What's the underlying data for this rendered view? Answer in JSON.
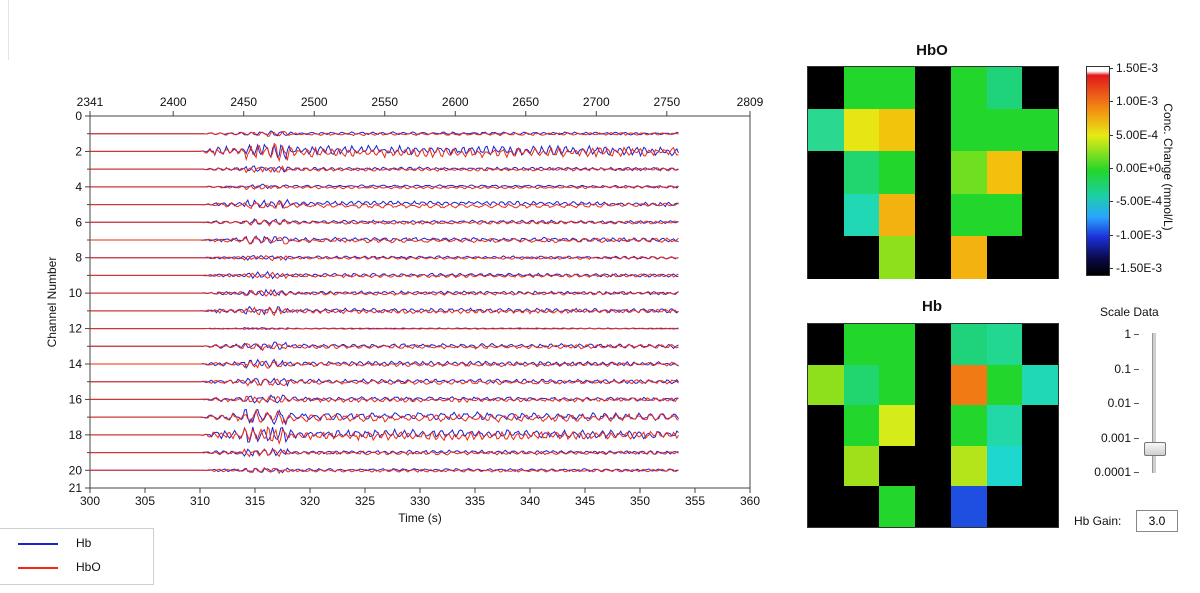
{
  "plot": {
    "top_ticks": [
      "2341",
      "2400",
      "2450",
      "2500",
      "2550",
      "2600",
      "2650",
      "2700",
      "2750",
      "2809"
    ],
    "bottom_ticks": [
      "300",
      "305",
      "310",
      "315",
      "320",
      "325",
      "330",
      "335",
      "340",
      "345",
      "350",
      "355",
      "360"
    ],
    "y_ticks": [
      "0",
      "2",
      "4",
      "6",
      "8",
      "10",
      "12",
      "14",
      "16",
      "18",
      "20",
      "21"
    ],
    "xlabel": "Time (s)",
    "ylabel": "Channel Number",
    "colors": {
      "hb": "#1a22d6",
      "hbo": "#ee2a12"
    }
  },
  "chart_data": {
    "type": "line",
    "xlabel": "Time (s)",
    "ylabel": "Channel Number",
    "xlim": [
      300,
      360
    ],
    "ylim": [
      21,
      0
    ],
    "x_secondary": {
      "min": 2341,
      "max": 2809
    },
    "series": [
      {
        "name": "Hb",
        "color": "#1a22d6"
      },
      {
        "name": "HbO",
        "color": "#ee2a12"
      }
    ],
    "signal_start_s": 310,
    "signal_end_s": 353.5
  },
  "heatmaps": {
    "hbo": {
      "title": "HbO",
      "grid": [
        [
          "#000000",
          "#22d62c",
          "#22d62c",
          "#000000",
          "#22d62c",
          "#1fd37a",
          "#000000"
        ],
        [
          "#2ad88f",
          "#e8e514",
          "#f2c40c",
          "#000000",
          "#22d62c",
          "#22d62c",
          "#22d62c"
        ],
        [
          "#000000",
          "#22d66f",
          "#22d62c",
          "#000000",
          "#6fe020",
          "#f4c00e",
          "#000000"
        ],
        [
          "#000000",
          "#20d8b4",
          "#f4b210",
          "#000000",
          "#22d62c",
          "#22d62c",
          "#000000"
        ],
        [
          "#000000",
          "#000000",
          "#8ee01c",
          "#000000",
          "#f4b210",
          "#000000",
          "#000000"
        ]
      ]
    },
    "hb": {
      "title": "Hb",
      "grid": [
        [
          "#000000",
          "#22d62c",
          "#22d62c",
          "#000000",
          "#1fd37a",
          "#22d890",
          "#000000"
        ],
        [
          "#8ee01c",
          "#22d66f",
          "#22d62c",
          "#000000",
          "#f07a14",
          "#22d62c",
          "#20d8b4"
        ],
        [
          "#000000",
          "#22d62c",
          "#d6ec1a",
          "#000000",
          "#22d62c",
          "#22d8a8",
          "#000000"
        ],
        [
          "#000000",
          "#a0e01a",
          "#000000",
          "#000000",
          "#b4e41a",
          "#1ed8d0",
          "#000000"
        ],
        [
          "#000000",
          "#000000",
          "#22d62c",
          "#000000",
          "#1f4fe0",
          "#000000",
          "#000000"
        ]
      ]
    }
  },
  "colorbar": {
    "title": "Conc. Change (mmol/L)",
    "labels": [
      "1.50E-3",
      "1.00E-3",
      "5.00E-4",
      "0.00E+0",
      "-5.00E-4",
      "-1.00E-3",
      "-1.50E-3"
    ]
  },
  "slider": {
    "title": "Scale Data",
    "labels": [
      "1",
      "0.1",
      "0.01",
      "0.001",
      "0.0001"
    ],
    "value": 0.0005
  },
  "gain": {
    "label": "Hb Gain:",
    "value": "3.0"
  },
  "legend": {
    "items": [
      {
        "label": "Hb",
        "color": "#1a22d6"
      },
      {
        "label": "HbO",
        "color": "#ee2a12"
      }
    ]
  }
}
